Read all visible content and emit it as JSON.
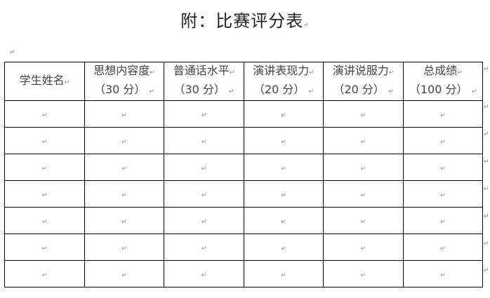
{
  "document": {
    "title": "附：比赛评分表",
    "paragraph_mark": "↵"
  },
  "table": {
    "headers": [
      {
        "line1": "学生姓名",
        "line2": ""
      },
      {
        "line1": "思想内容度",
        "line2": "（30 分）"
      },
      {
        "line1": "普通话水平",
        "line2": "（30 分）"
      },
      {
        "line1": "演讲表现力",
        "line2": "（20 分）"
      },
      {
        "line1": "演讲说服力",
        "line2": "（20 分）"
      },
      {
        "line1": "总成绩",
        "line2": "（100 分）"
      }
    ],
    "rows": [
      [
        "",
        "",
        "",
        "",
        "",
        ""
      ],
      [
        "",
        "",
        "",
        "",
        "",
        ""
      ],
      [
        "",
        "",
        "",
        "",
        "",
        ""
      ],
      [
        "",
        "",
        "",
        "",
        "",
        ""
      ],
      [
        "",
        "",
        "",
        "",
        "",
        ""
      ],
      [
        "",
        "",
        "",
        "",
        "",
        ""
      ],
      [
        "",
        "",
        "",
        "",
        "",
        ""
      ]
    ]
  }
}
